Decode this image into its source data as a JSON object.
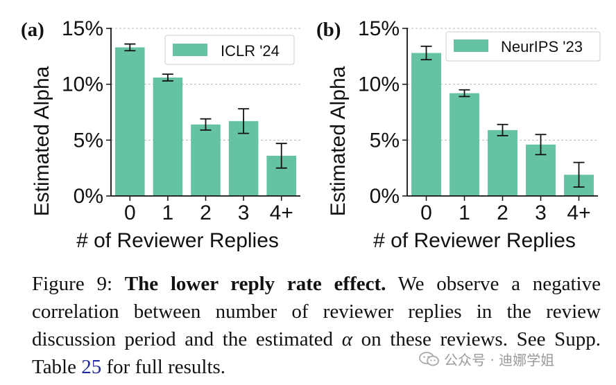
{
  "chart_data": [
    {
      "type": "bar",
      "panel_label": "(a)",
      "legend": "ICLR '24",
      "legend_position": "top-right",
      "categories": [
        "0",
        "1",
        "2",
        "3",
        "4+"
      ],
      "values": [
        13.3,
        10.6,
        6.4,
        6.7,
        3.6
      ],
      "error_low": [
        13.0,
        10.3,
        5.9,
        5.6,
        2.5
      ],
      "error_high": [
        13.6,
        10.9,
        6.9,
        7.8,
        4.7
      ],
      "yticks": [
        0,
        5,
        10,
        15
      ],
      "ytick_labels": [
        "0%",
        "5%",
        "10%",
        "15%"
      ],
      "ylim": [
        0,
        15
      ],
      "xlabel": "# of Reviewer Replies",
      "ylabel": "Estimated Alpha",
      "grid": "horizontal dashed",
      "bar_color": "#66c2a5"
    },
    {
      "type": "bar",
      "panel_label": "(b)",
      "legend": "NeurIPS '23",
      "legend_position": "top-right",
      "categories": [
        "0",
        "1",
        "2",
        "3",
        "4+"
      ],
      "values": [
        12.8,
        9.2,
        5.9,
        4.6,
        1.9
      ],
      "error_low": [
        12.2,
        8.9,
        5.4,
        3.7,
        0.8
      ],
      "error_high": [
        13.4,
        9.5,
        6.4,
        5.5,
        3.0
      ],
      "yticks": [
        0,
        5,
        10,
        15
      ],
      "ytick_labels": [
        "0%",
        "5%",
        "10%",
        "15%"
      ],
      "ylim": [
        0,
        15
      ],
      "xlabel": "# of Reviewer Replies",
      "ylabel": "Estimated Alpha",
      "grid": "horizontal dashed",
      "bar_color": "#66c2a5"
    }
  ],
  "caption": {
    "prefix": "Figure 9:",
    "title": "The lower reply rate effect.",
    "body_1": "We observe a negative correlation between number of reviewer replies in the review discussion period and the estimated",
    "alpha_symbol": "α",
    "body_2": "on these reviews. See Supp. Table",
    "table_ref": "25",
    "body_3": "for full results."
  },
  "watermark": {
    "text": "公众号 · 迪娜学姐",
    "icon": "wechat-icon"
  }
}
